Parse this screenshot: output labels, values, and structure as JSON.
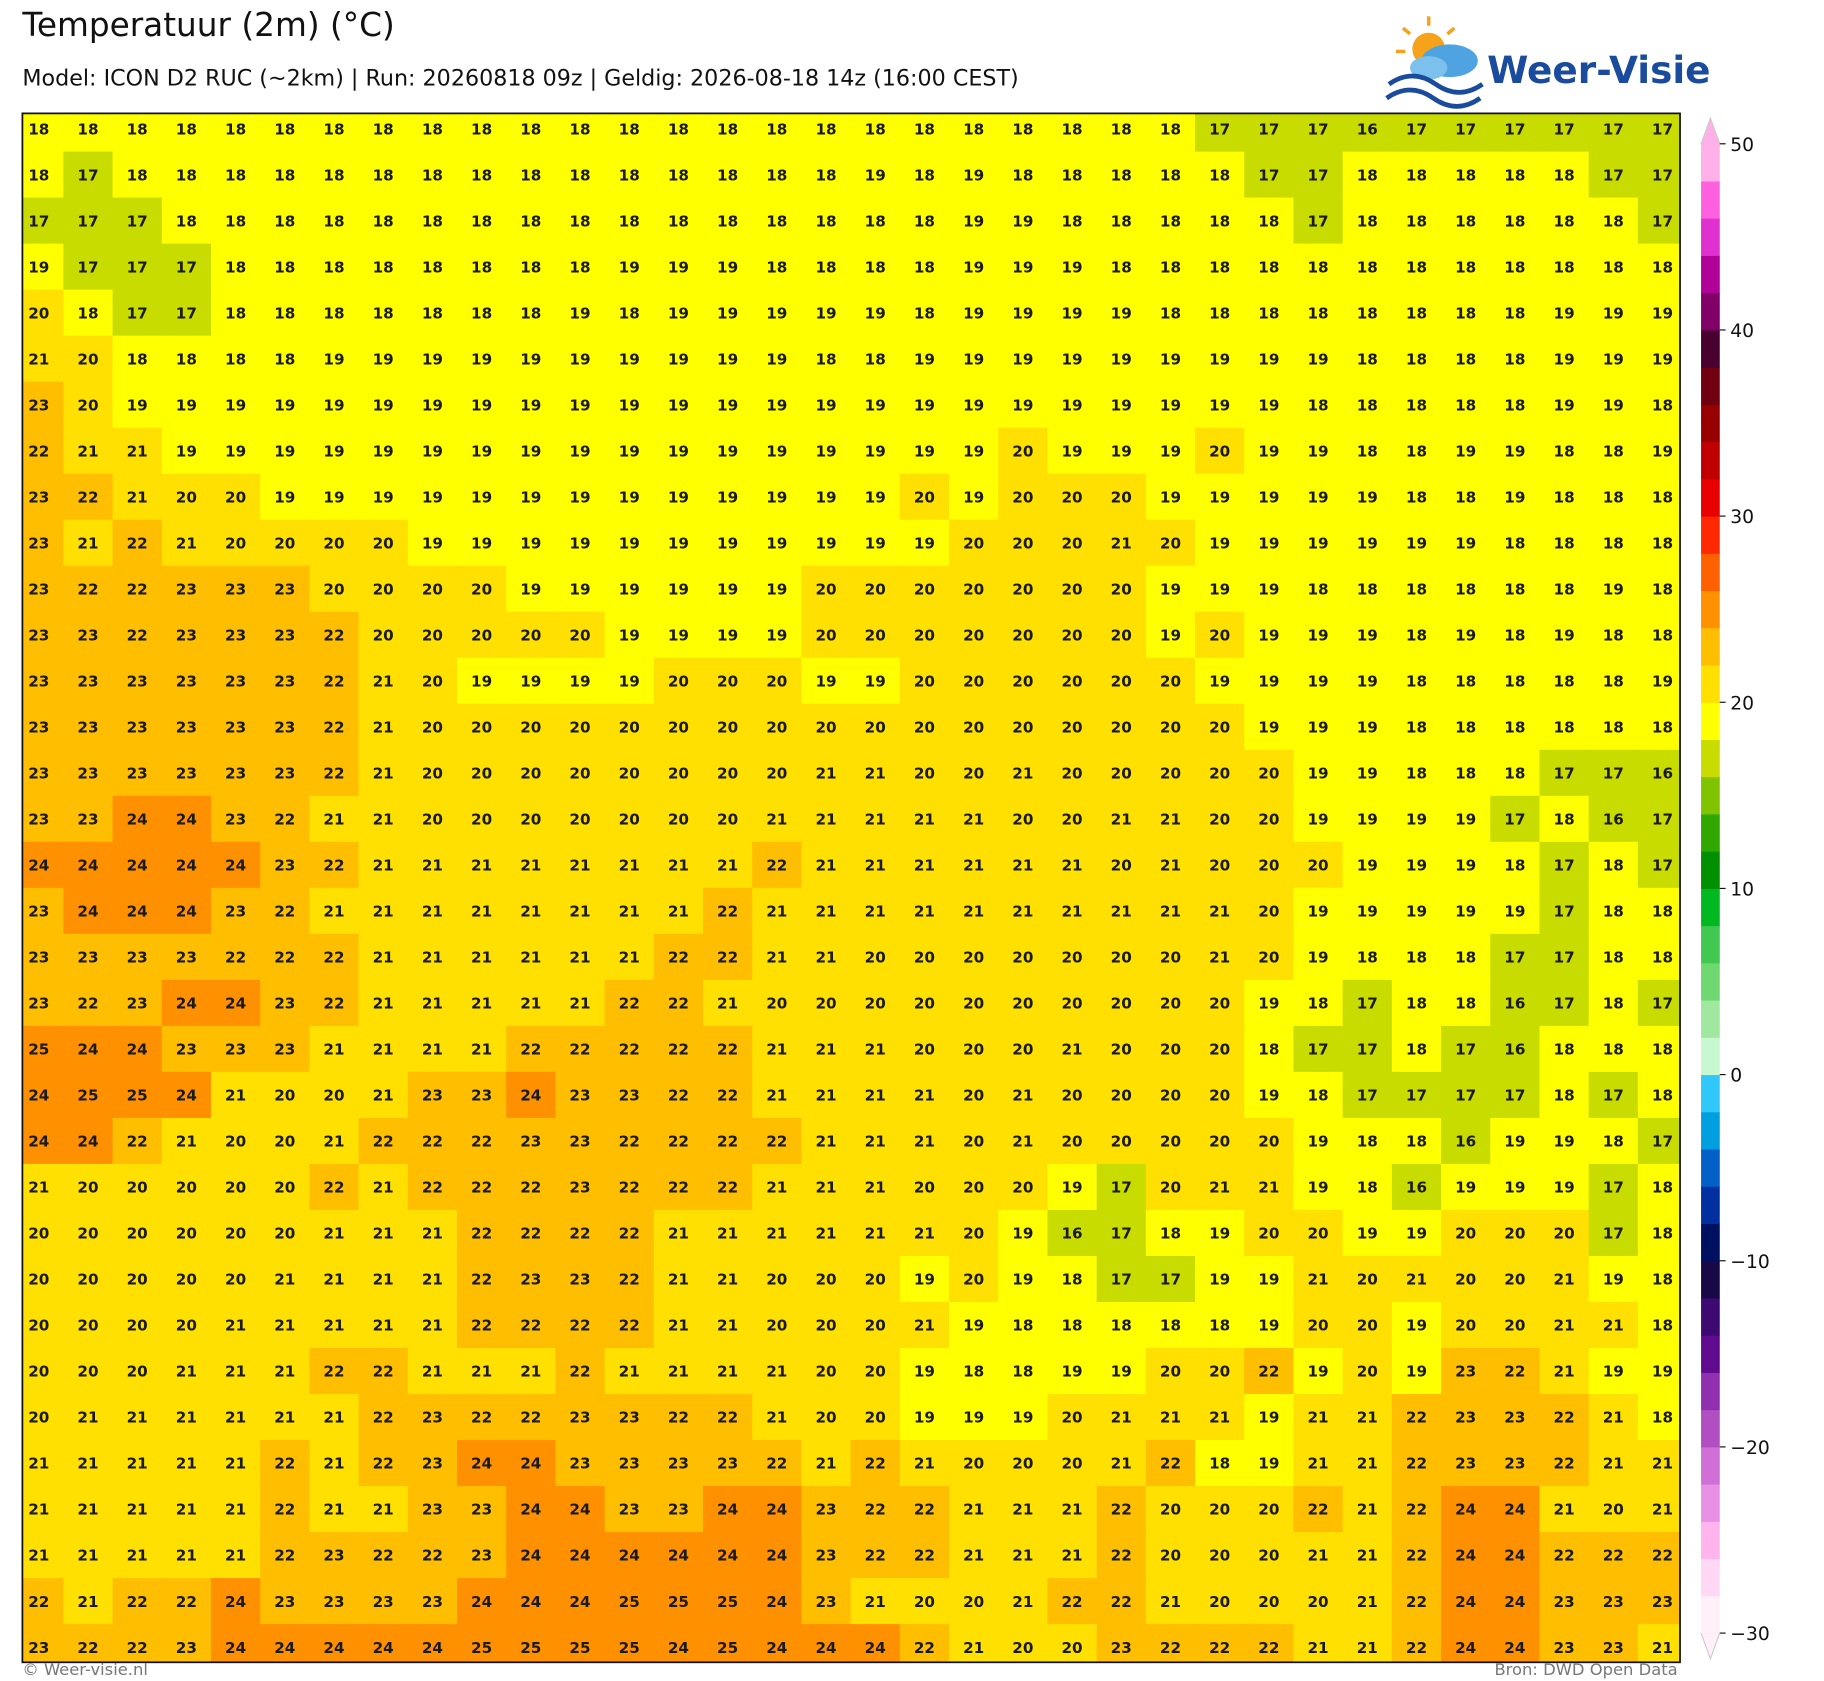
{
  "header": {
    "title": "Temperatuur (2m) (°C)",
    "subtitle": "Model: ICON D2 RUC (~2km)  |  Run: 20260818 09z  |  Geldig: 2026-08-18 14z (16:00 CEST)",
    "logo": "Weer-Visie"
  },
  "map": {
    "values": [
      [
        18,
        18,
        18,
        18,
        18,
        18,
        18,
        18,
        18,
        18,
        18,
        18,
        18,
        18,
        18,
        18,
        18,
        18,
        18,
        18,
        18,
        18,
        18,
        18,
        17,
        17,
        17,
        16,
        17,
        17,
        17,
        17,
        17,
        17
      ],
      [
        18,
        17,
        18,
        18,
        18,
        18,
        18,
        18,
        18,
        18,
        18,
        18,
        18,
        18,
        18,
        18,
        18,
        19,
        18,
        19,
        18,
        18,
        18,
        18,
        18,
        17,
        17,
        18,
        18,
        18,
        18,
        18,
        17,
        17
      ],
      [
        17,
        17,
        17,
        18,
        18,
        18,
        18,
        18,
        18,
        18,
        18,
        18,
        18,
        18,
        18,
        18,
        18,
        18,
        18,
        19,
        19,
        18,
        18,
        18,
        18,
        18,
        17,
        18,
        18,
        18,
        18,
        18,
        18,
        17
      ],
      [
        19,
        17,
        17,
        17,
        18,
        18,
        18,
        18,
        18,
        18,
        18,
        18,
        19,
        19,
        19,
        18,
        18,
        18,
        18,
        19,
        19,
        19,
        18,
        18,
        18,
        18,
        18,
        18,
        18,
        18,
        18,
        18,
        18,
        18
      ],
      [
        20,
        18,
        17,
        17,
        18,
        18,
        18,
        18,
        18,
        18,
        18,
        19,
        18,
        19,
        19,
        19,
        19,
        19,
        18,
        19,
        19,
        19,
        19,
        18,
        18,
        18,
        18,
        18,
        18,
        18,
        18,
        19,
        19,
        19
      ],
      [
        21,
        20,
        18,
        18,
        18,
        18,
        19,
        19,
        19,
        19,
        19,
        19,
        19,
        19,
        19,
        19,
        18,
        18,
        19,
        19,
        19,
        19,
        19,
        19,
        19,
        19,
        19,
        18,
        18,
        18,
        18,
        19,
        19,
        19
      ],
      [
        23,
        20,
        19,
        19,
        19,
        19,
        19,
        19,
        19,
        19,
        19,
        19,
        19,
        19,
        19,
        19,
        19,
        19,
        19,
        19,
        19,
        19,
        19,
        19,
        19,
        19,
        18,
        18,
        18,
        18,
        18,
        19,
        19,
        18
      ],
      [
        22,
        21,
        21,
        19,
        19,
        19,
        19,
        19,
        19,
        19,
        19,
        19,
        19,
        19,
        19,
        19,
        19,
        19,
        19,
        19,
        20,
        19,
        19,
        19,
        20,
        19,
        19,
        18,
        18,
        19,
        19,
        18,
        18,
        19
      ],
      [
        23,
        22,
        21,
        20,
        20,
        19,
        19,
        19,
        19,
        19,
        19,
        19,
        19,
        19,
        19,
        19,
        19,
        19,
        20,
        19,
        20,
        20,
        20,
        19,
        19,
        19,
        19,
        19,
        18,
        18,
        19,
        18,
        18,
        18
      ],
      [
        23,
        21,
        22,
        21,
        20,
        20,
        20,
        20,
        19,
        19,
        19,
        19,
        19,
        19,
        19,
        19,
        19,
        19,
        19,
        20,
        20,
        20,
        21,
        20,
        19,
        19,
        19,
        19,
        19,
        19,
        18,
        18,
        18,
        18
      ],
      [
        23,
        22,
        22,
        23,
        23,
        23,
        20,
        20,
        20,
        20,
        19,
        19,
        19,
        19,
        19,
        19,
        20,
        20,
        20,
        20,
        20,
        20,
        20,
        19,
        19,
        19,
        18,
        18,
        18,
        18,
        18,
        18,
        19,
        18
      ],
      [
        23,
        23,
        22,
        23,
        23,
        23,
        22,
        20,
        20,
        20,
        20,
        20,
        19,
        19,
        19,
        19,
        20,
        20,
        20,
        20,
        20,
        20,
        20,
        19,
        20,
        19,
        19,
        19,
        18,
        19,
        18,
        19,
        18,
        18
      ],
      [
        23,
        23,
        23,
        23,
        23,
        23,
        22,
        21,
        20,
        19,
        19,
        19,
        19,
        20,
        20,
        20,
        19,
        19,
        20,
        20,
        20,
        20,
        20,
        20,
        19,
        19,
        19,
        19,
        18,
        18,
        18,
        18,
        18,
        19
      ],
      [
        23,
        23,
        23,
        23,
        23,
        23,
        22,
        21,
        20,
        20,
        20,
        20,
        20,
        20,
        20,
        20,
        20,
        20,
        20,
        20,
        20,
        20,
        20,
        20,
        20,
        19,
        19,
        19,
        18,
        18,
        18,
        18,
        18,
        18
      ],
      [
        23,
        23,
        23,
        23,
        23,
        23,
        22,
        21,
        20,
        20,
        20,
        20,
        20,
        20,
        20,
        20,
        21,
        21,
        20,
        20,
        21,
        20,
        20,
        20,
        20,
        20,
        19,
        19,
        18,
        18,
        18,
        17,
        17,
        16
      ],
      [
        23,
        23,
        24,
        24,
        23,
        22,
        21,
        21,
        20,
        20,
        20,
        20,
        20,
        20,
        20,
        21,
        21,
        21,
        21,
        21,
        20,
        20,
        21,
        21,
        20,
        20,
        19,
        19,
        19,
        19,
        17,
        18,
        16,
        17
      ],
      [
        24,
        24,
        24,
        24,
        24,
        23,
        22,
        21,
        21,
        21,
        21,
        21,
        21,
        21,
        21,
        22,
        21,
        21,
        21,
        21,
        21,
        21,
        20,
        21,
        20,
        20,
        20,
        19,
        19,
        19,
        18,
        17,
        18,
        17
      ],
      [
        23,
        24,
        24,
        24,
        23,
        22,
        21,
        21,
        21,
        21,
        21,
        21,
        21,
        21,
        22,
        21,
        21,
        21,
        21,
        21,
        21,
        21,
        21,
        21,
        21,
        20,
        19,
        19,
        19,
        19,
        19,
        17,
        18,
        18
      ],
      [
        23,
        23,
        23,
        23,
        22,
        22,
        22,
        21,
        21,
        21,
        21,
        21,
        21,
        22,
        22,
        21,
        21,
        20,
        20,
        20,
        20,
        20,
        20,
        20,
        21,
        20,
        19,
        18,
        18,
        18,
        17,
        17,
        18,
        18
      ],
      [
        23,
        22,
        23,
        24,
        24,
        23,
        22,
        21,
        21,
        21,
        21,
        21,
        22,
        22,
        21,
        20,
        20,
        20,
        20,
        20,
        20,
        20,
        20,
        20,
        20,
        19,
        18,
        17,
        18,
        18,
        16,
        17,
        18,
        17
      ],
      [
        25,
        24,
        24,
        23,
        23,
        23,
        21,
        21,
        21,
        21,
        22,
        22,
        22,
        22,
        22,
        21,
        21,
        21,
        20,
        20,
        20,
        21,
        20,
        20,
        20,
        18,
        17,
        17,
        18,
        17,
        16,
        18,
        18,
        18
      ],
      [
        24,
        25,
        25,
        24,
        21,
        20,
        20,
        21,
        23,
        23,
        24,
        23,
        23,
        22,
        22,
        21,
        21,
        21,
        21,
        20,
        21,
        20,
        20,
        20,
        20,
        19,
        18,
        17,
        17,
        17,
        17,
        18,
        17,
        18
      ],
      [
        24,
        24,
        22,
        21,
        20,
        20,
        21,
        22,
        22,
        22,
        23,
        23,
        22,
        22,
        22,
        22,
        21,
        21,
        21,
        20,
        21,
        20,
        20,
        20,
        20,
        20,
        19,
        18,
        18,
        16,
        19,
        19,
        18,
        17
      ],
      [
        21,
        20,
        20,
        20,
        20,
        20,
        22,
        21,
        22,
        22,
        22,
        23,
        22,
        22,
        22,
        21,
        21,
        21,
        20,
        20,
        20,
        19,
        17,
        20,
        21,
        21,
        19,
        18,
        16,
        19,
        19,
        19,
        17,
        18
      ],
      [
        20,
        20,
        20,
        20,
        20,
        20,
        21,
        21,
        21,
        22,
        22,
        22,
        22,
        21,
        21,
        21,
        21,
        21,
        21,
        20,
        19,
        16,
        17,
        18,
        19,
        20,
        20,
        19,
        19,
        20,
        20,
        20,
        17,
        18
      ],
      [
        20,
        20,
        20,
        20,
        20,
        21,
        21,
        21,
        21,
        22,
        23,
        23,
        22,
        21,
        21,
        20,
        20,
        20,
        19,
        20,
        19,
        18,
        17,
        17,
        19,
        19,
        21,
        20,
        21,
        20,
        20,
        21,
        19,
        18
      ],
      [
        20,
        20,
        20,
        20,
        21,
        21,
        21,
        21,
        21,
        22,
        22,
        22,
        22,
        21,
        21,
        20,
        20,
        20,
        21,
        19,
        18,
        18,
        18,
        18,
        18,
        19,
        20,
        20,
        19,
        20,
        20,
        21,
        21,
        18
      ],
      [
        20,
        20,
        20,
        21,
        21,
        21,
        22,
        22,
        21,
        21,
        21,
        22,
        21,
        21,
        21,
        21,
        20,
        20,
        19,
        18,
        18,
        19,
        19,
        20,
        20,
        22,
        19,
        20,
        19,
        23,
        22,
        21,
        19,
        19
      ],
      [
        20,
        21,
        21,
        21,
        21,
        21,
        21,
        22,
        23,
        22,
        22,
        23,
        23,
        22,
        22,
        21,
        20,
        20,
        19,
        19,
        19,
        20,
        21,
        21,
        21,
        19,
        21,
        21,
        22,
        23,
        23,
        22,
        21,
        18
      ],
      [
        21,
        21,
        21,
        21,
        21,
        22,
        21,
        22,
        23,
        24,
        24,
        23,
        23,
        23,
        23,
        22,
        21,
        22,
        21,
        20,
        20,
        20,
        21,
        22,
        18,
        19,
        21,
        21,
        22,
        23,
        23,
        22,
        21,
        21
      ],
      [
        21,
        21,
        21,
        21,
        21,
        22,
        21,
        21,
        23,
        23,
        24,
        24,
        23,
        23,
        24,
        24,
        23,
        22,
        22,
        21,
        21,
        21,
        22,
        20,
        20,
        20,
        22,
        21,
        22,
        24,
        24,
        21,
        20,
        21
      ],
      [
        21,
        21,
        21,
        21,
        21,
        22,
        23,
        22,
        22,
        23,
        24,
        24,
        24,
        24,
        24,
        24,
        23,
        22,
        22,
        21,
        21,
        21,
        22,
        20,
        20,
        20,
        21,
        21,
        22,
        24,
        24,
        22,
        22,
        22
      ],
      [
        22,
        21,
        22,
        22,
        24,
        23,
        23,
        23,
        23,
        24,
        24,
        24,
        25,
        25,
        25,
        24,
        23,
        21,
        20,
        20,
        21,
        22,
        22,
        21,
        20,
        20,
        20,
        21,
        22,
        24,
        24,
        23,
        23,
        23
      ],
      [
        23,
        22,
        22,
        23,
        24,
        24,
        24,
        24,
        24,
        25,
        25,
        25,
        25,
        24,
        25,
        24,
        24,
        24,
        22,
        21,
        20,
        20,
        23,
        22,
        22,
        22,
        21,
        21,
        22,
        24,
        24,
        23,
        23,
        21
      ]
    ]
  },
  "colorbar": {
    "ticks": [
      50,
      40,
      30,
      20,
      10,
      0,
      {
        "value": -10,
        "label": "−10"
      },
      {
        "value": -20,
        "label": "−20"
      },
      {
        "value": -30,
        "label": "−30"
      }
    ],
    "colors": [
      "#fff0fa",
      "#ffd8f5",
      "#ffb4ee",
      "#e890e6",
      "#d070d6",
      "#b04ec2",
      "#9030b0",
      "#600a90",
      "#3c0a70",
      "#180848",
      "#001060",
      "#0030a0",
      "#0060c8",
      "#00a0e0",
      "#30c8f8",
      "#c8f8d0",
      "#a0e8a0",
      "#70d870",
      "#40c850",
      "#00b820",
      "#009000",
      "#30a800",
      "#80c400",
      "#c8dc00",
      "#ffff00",
      "#ffe000",
      "#ffbe00",
      "#ff9000",
      "#ff6000",
      "#ff2800",
      "#e80000",
      "#c00000",
      "#980000",
      "#700010",
      "#480030",
      "#800068",
      "#b00098",
      "#e030d0",
      "#ff60e0",
      "#ffb0e8"
    ]
  },
  "footer": {
    "left": "© Weer-visie.nl",
    "right": "Bron: DWD Open Data"
  }
}
